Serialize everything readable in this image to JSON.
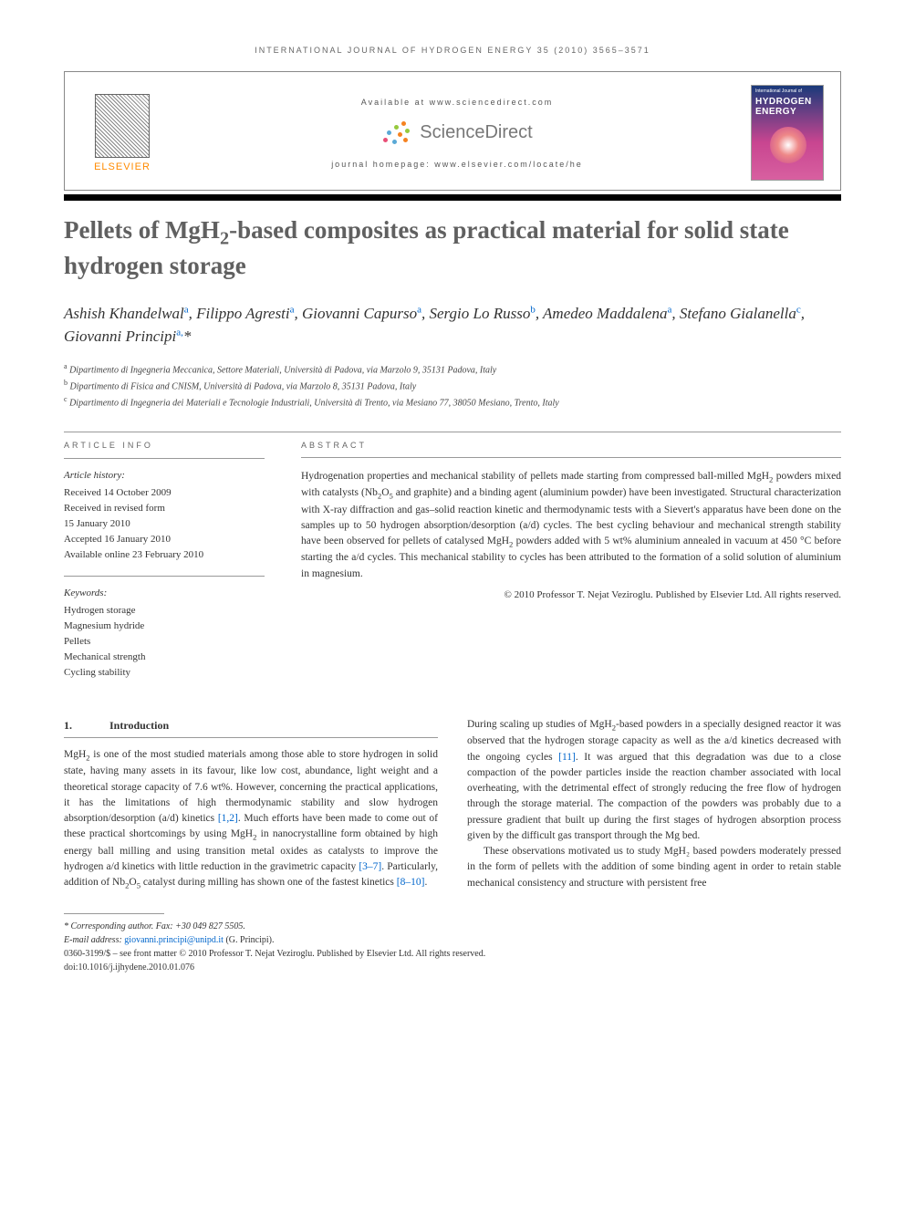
{
  "running_head": "INTERNATIONAL JOURNAL OF HYDROGEN ENERGY 35 (2010) 3565–3571",
  "header": {
    "available_at": "Available at www.sciencedirect.com",
    "sd_brand": "ScienceDirect",
    "journal_homepage": "journal homepage: www.elsevier.com/locate/he",
    "publisher": "ELSEVIER",
    "cover_top": "International Journal of",
    "cover_main": "HYDROGEN ENERGY"
  },
  "title": "Pellets of MgH₂-based composites as practical material for solid state hydrogen storage",
  "authors_html": "Ashish Khandelwal<sup>a</sup>, Filippo Agresti<sup>a</sup>, Giovanni Capurso<sup>a</sup>, Sergio Lo Russo<sup>b</sup>, Amedeo Maddalena<sup>a</sup>, Stefano Gialanella<sup>c</sup>, Giovanni Principi<sup>a,</sup><span class='star'>*</span>",
  "affiliations": [
    {
      "sup": "a",
      "text": "Dipartimento di Ingegneria Meccanica, Settore Materiali, Università di Padova, via Marzolo 9, 35131 Padova, Italy"
    },
    {
      "sup": "b",
      "text": "Dipartimento di Fisica and CNISM, Università di Padova, via Marzolo 8, 35131 Padova, Italy"
    },
    {
      "sup": "c",
      "text": "Dipartimento di Ingegneria dei Materiali e Tecnologie Industriali, Università di Trento, via Mesiano 77, 38050 Mesiano, Trento, Italy"
    }
  ],
  "article_info": {
    "heading": "ARTICLE INFO",
    "history_label": "Article history:",
    "history": [
      "Received 14 October 2009",
      "Received in revised form",
      "15 January 2010",
      "Accepted 16 January 2010",
      "Available online 23 February 2010"
    ],
    "keywords_label": "Keywords:",
    "keywords": [
      "Hydrogen storage",
      "Magnesium hydride",
      "Pellets",
      "Mechanical strength",
      "Cycling stability"
    ]
  },
  "abstract": {
    "heading": "ABSTRACT",
    "text": "Hydrogenation properties and mechanical stability of pellets made starting from compressed ball-milled MgH₂ powders mixed with catalysts (Nb₂O₅ and graphite) and a binding agent (aluminium powder) have been investigated. Structural characterization with X-ray diffraction and gas–solid reaction kinetic and thermodynamic tests with a Sievert's apparatus have been done on the samples up to 50 hydrogen absorption/desorption (a/d) cycles. The best cycling behaviour and mechanical strength stability have been observed for pellets of catalysed MgH₂ powders added with 5 wt% aluminium annealed in vacuum at 450 °C before starting the a/d cycles. This mechanical stability to cycles has been attributed to the formation of a solid solution of aluminium in magnesium.",
    "copyright": "© 2010 Professor T. Nejat Veziroglu. Published by Elsevier Ltd. All rights reserved."
  },
  "section1": {
    "num": "1.",
    "title": "Introduction",
    "p1": "MgH₂ is one of the most studied materials among those able to store hydrogen in solid state, having many assets in its favour, like low cost, abundance, light weight and a theoretical storage capacity of 7.6 wt%. However, concerning the practical applications, it has the limitations of high thermodynamic stability and slow hydrogen absorption/desorption (a/d) kinetics [1,2]. Much efforts have been made to come out of these practical shortcomings by using MgH₂ in nanocrystalline form obtained by high energy ball milling and using transition metal oxides as catalysts to improve the hydrogen a/d kinetics with little reduction in the gravimetric capacity [3–7]. Particularly, addition of Nb₂O₅ catalyst during milling has shown one of the fastest kinetics [8–10].",
    "p2": "During scaling up studies of MgH₂-based powders in a specially designed reactor it was observed that the hydrogen storage capacity as well as the a/d kinetics decreased with the ongoing cycles [11]. It was argued that this degradation was due to a close compaction of the powder particles inside the reaction chamber associated with local overheating, with the detrimental effect of strongly reducing the free flow of hydrogen through the storage material. The compaction of the powders was probably due to a pressure gradient that built up during the first stages of hydrogen absorption process given by the difficult gas transport through the Mg bed.",
    "p3": "These observations motivated us to study MgH₂ based powders moderately pressed in the form of pellets with the addition of some binding agent in order to retain stable mechanical consistency and structure with persistent free"
  },
  "footnotes": {
    "corr": "* Corresponding author. Fax: +30 049 827 5505.",
    "email_label": "E-mail address: ",
    "email": "giovanni.principi@unipd.it",
    "email_tail": " (G. Principi).",
    "front": "0360-3199/$ – see front matter © 2010 Professor T. Nejat Veziroglu. Published by Elsevier Ltd. All rights reserved.",
    "doi": "doi:10.1016/j.ijhydene.2010.01.076"
  },
  "colors": {
    "elsevier_orange": "#ff8a00",
    "link_blue": "#0066cc",
    "title_gray": "#606060"
  }
}
